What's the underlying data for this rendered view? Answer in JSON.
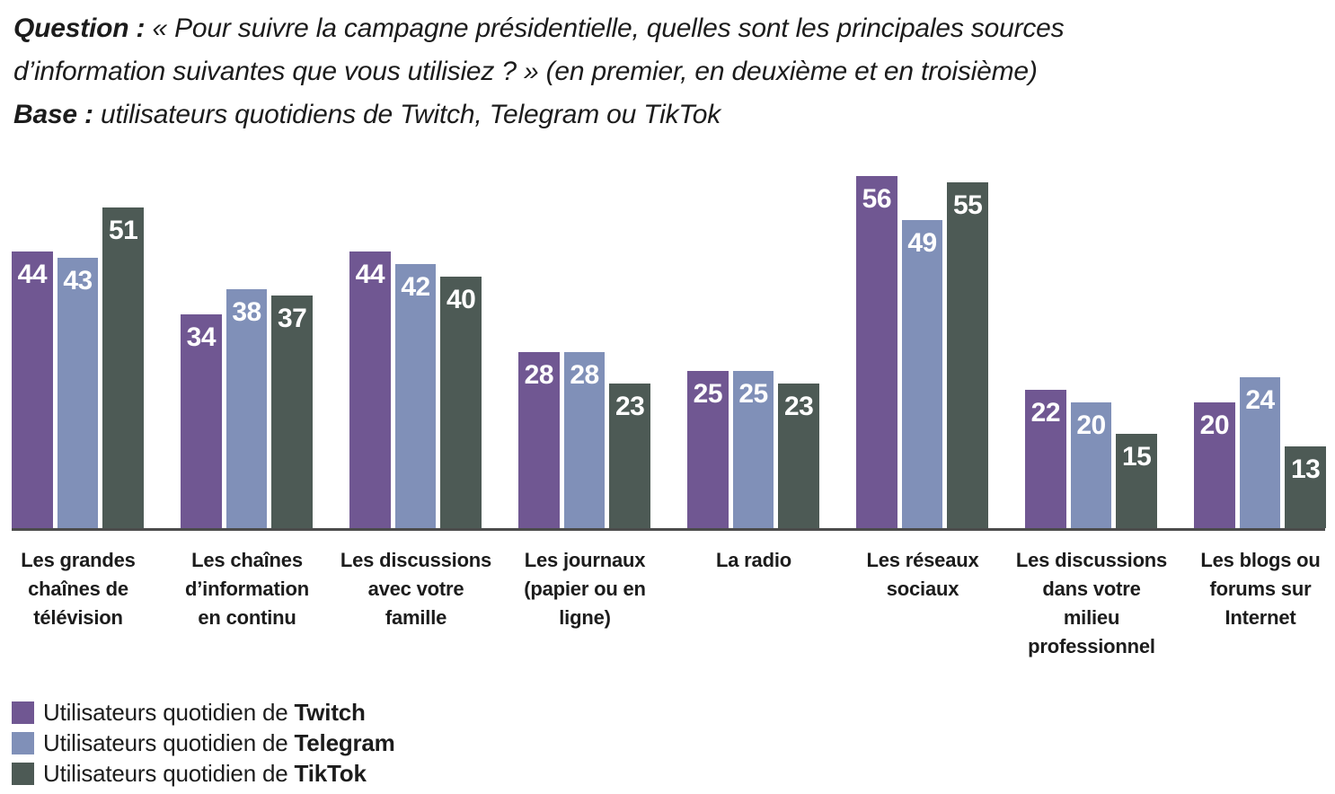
{
  "header": {
    "lines": [
      {
        "bold": "Question :",
        "rest": " « Pour suivre la campagne présidentielle, quelles sont les principales sources"
      },
      {
        "bold": "",
        "rest": "d’information suivantes que vous utilisiez ? » (en premier, en deuxième et en troisième)"
      },
      {
        "bold": "Base :",
        "rest": " utilisateurs quotidiens de Twitch, Telegram ou TikTok"
      }
    ]
  },
  "chart_data": {
    "type": "bar",
    "title": "Question : « Pour suivre la campagne présidentielle, quelles sont les principales sources d’information suivantes que vous utilisiez ? » (en premier, en deuxième et en troisième) — Base : utilisateurs quotidiens de Twitch, Telegram ou TikTok",
    "categories": [
      "Les grandes\nchaînes de\ntélévision",
      "Les chaînes\nd’information\nen continu",
      "Les discussions\navec votre\nfamille",
      "Les journaux\n(papier ou en\nligne)",
      "La radio",
      "Les réseaux\nsociaux",
      "Les discussions\ndans votre\nmilieu\nprofessionnel",
      "Les blogs ou\nforums sur\nInternet"
    ],
    "series": [
      {
        "name": "Utilisateurs quotidien de Twitch",
        "brand": "Twitch",
        "color": "#705792",
        "values": [
          44,
          34,
          44,
          28,
          25,
          56,
          22,
          20
        ]
      },
      {
        "name": "Utilisateurs quotidien de Telegram",
        "brand": "Telegram",
        "color": "#8090B8",
        "values": [
          43,
          38,
          42,
          28,
          25,
          49,
          20,
          24
        ]
      },
      {
        "name": "Utilisateurs quotidien de TikTok",
        "brand": "TikTok",
        "color": "#4D5A55",
        "values": [
          51,
          37,
          40,
          23,
          23,
          55,
          15,
          13
        ]
      }
    ],
    "ylim": [
      0,
      60
    ],
    "grid": false,
    "value_labels": "inside-top-white-bold",
    "legend_position": "bottom-left",
    "axis_line_color": "#4c4c4c"
  },
  "legend": {
    "items": [
      {
        "prefix": "Utilisateurs quotidien de ",
        "brand": "Twitch",
        "color": "#705792"
      },
      {
        "prefix": "Utilisateurs quotidien de ",
        "brand": "Telegram",
        "color": "#8090B8"
      },
      {
        "prefix": "Utilisateurs quotidien de ",
        "brand": "TikTok",
        "color": "#4D5A55"
      }
    ]
  }
}
